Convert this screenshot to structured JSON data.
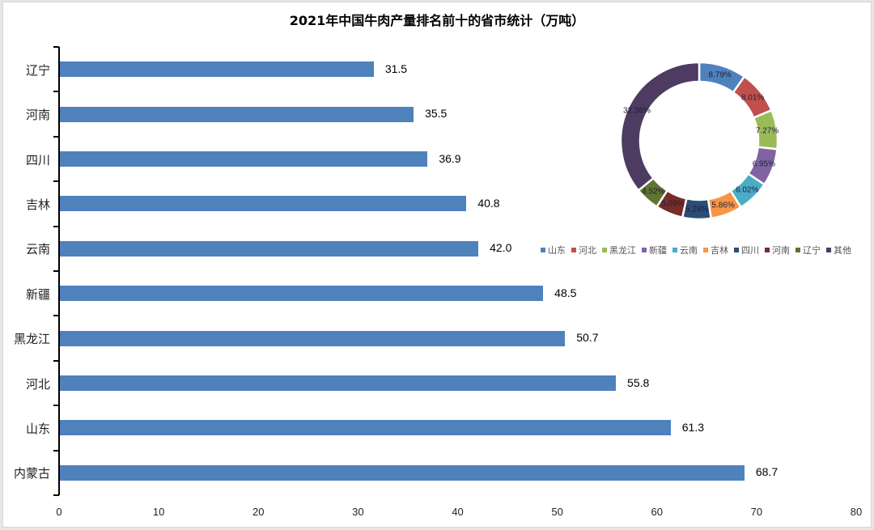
{
  "chart_data": [
    {
      "type": "bar",
      "orientation": "horizontal",
      "title": "2021年中国牛肉产量排名前十的省市统计（万吨）",
      "categories": [
        "辽宁",
        "河南",
        "四川",
        "吉林",
        "云南",
        "新疆",
        "黑龙江",
        "河北",
        "山东",
        "内蒙古"
      ],
      "values": [
        31.5,
        35.5,
        36.9,
        40.8,
        42.0,
        48.5,
        50.7,
        55.8,
        61.3,
        68.7
      ],
      "value_labels": [
        "31.5",
        "35.5",
        "36.9",
        "40.8",
        "42.0",
        "48.5",
        "50.7",
        "55.8",
        "61.3",
        "68.7"
      ],
      "xlabel": "",
      "ylabel": "",
      "xlim": [
        0,
        80
      ],
      "x_ticks": [
        "0",
        "10",
        "20",
        "30",
        "40",
        "50",
        "60",
        "70",
        "80"
      ],
      "grid": false,
      "bar_color": "#4f81bd"
    },
    {
      "type": "pie",
      "subtype": "donut",
      "labels": [
        "山东",
        "河北",
        "黑龙江",
        "新疆",
        "云南",
        "吉林",
        "四川",
        "河南",
        "辽宁",
        "其他"
      ],
      "values": [
        8.79,
        8.01,
        7.27,
        6.95,
        6.02,
        5.86,
        5.28,
        5.09,
        4.52,
        32.36
      ],
      "value_labels": [
        "8.79%",
        "8.01%",
        "7.27%",
        "6.95%",
        "6.02%",
        "5.86%",
        "5.28%",
        "5.09%",
        "4.52%",
        "32.36%"
      ],
      "colors": [
        "#4f81bd",
        "#c0504d",
        "#9bbb59",
        "#8064a2",
        "#4bacc6",
        "#f79646",
        "#2c4d75",
        "#772c2a",
        "#5f7530",
        "#4d3b62"
      ],
      "legend_position": "bottom"
    }
  ]
}
